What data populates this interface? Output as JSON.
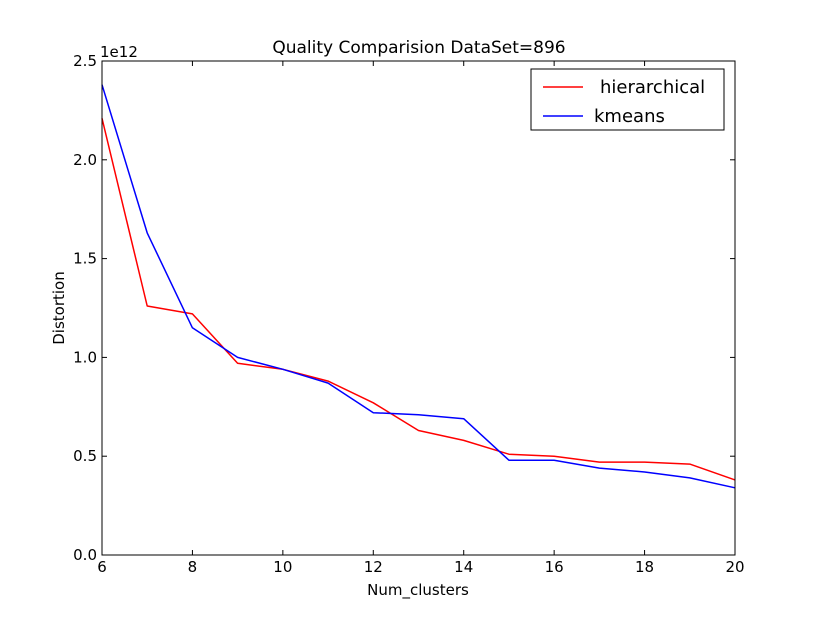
{
  "chart_data": {
    "type": "line",
    "title": "Quality Comparision DataSet=896",
    "xlabel": "Num_clusters",
    "ylabel": "Distortion",
    "y_offset_label": "1e12",
    "xlim": [
      6,
      20
    ],
    "ylim": [
      0.0,
      2.5
    ],
    "x_ticks": [
      6,
      8,
      10,
      12,
      14,
      16,
      18,
      20
    ],
    "x_tick_labels": [
      "6",
      "8",
      "10",
      "12",
      "14",
      "16",
      "18",
      "20"
    ],
    "y_ticks": [
      0.0,
      0.5,
      1.0,
      1.5,
      2.0,
      2.5
    ],
    "y_tick_labels": [
      "0.0",
      "0.5",
      "1.0",
      "1.5",
      "2.0",
      "2.5"
    ],
    "grid": false,
    "legend_position": "top-right",
    "x": [
      6,
      7,
      8,
      9,
      10,
      11,
      12,
      13,
      14,
      15,
      16,
      17,
      18,
      19,
      20
    ],
    "series": [
      {
        "name": "hierarchical",
        "color": "#ff0000",
        "values": [
          2.21,
          1.26,
          1.22,
          0.97,
          0.94,
          0.88,
          0.77,
          0.63,
          0.58,
          0.51,
          0.5,
          0.47,
          0.47,
          0.46,
          0.38
        ]
      },
      {
        "name": "kmeans",
        "color": "#0000ff",
        "values": [
          2.38,
          1.63,
          1.15,
          1.0,
          0.94,
          0.87,
          0.72,
          0.71,
          0.69,
          0.48,
          0.48,
          0.44,
          0.42,
          0.39,
          0.34
        ]
      }
    ]
  }
}
